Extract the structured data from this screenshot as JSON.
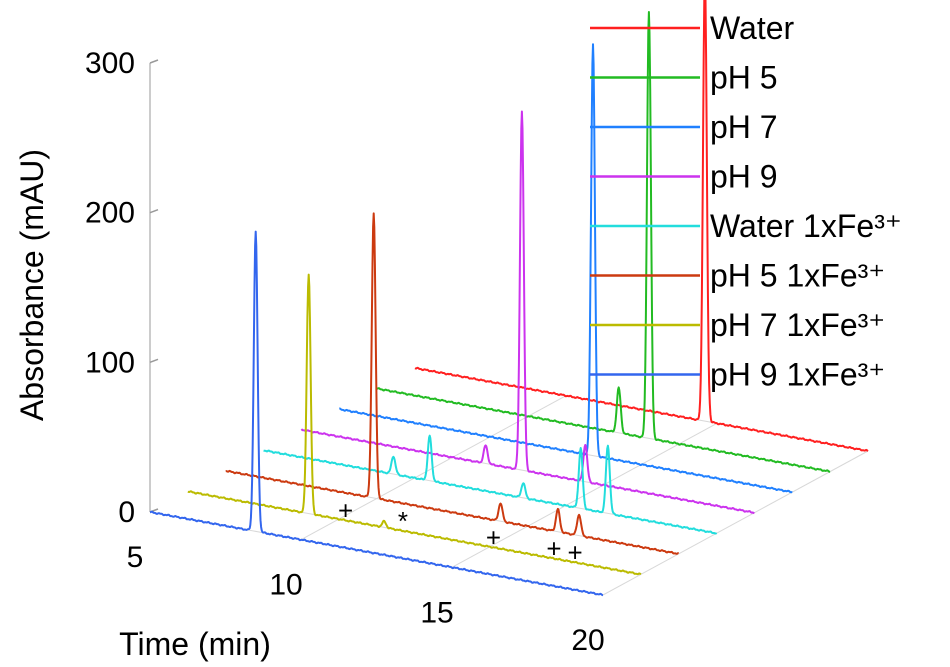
{
  "chart_data": {
    "type": "line",
    "chart_kind": "3d-waterfall",
    "title": "",
    "xlabel": "Time (min)",
    "ylabel": "Absorbance (mAU)",
    "xlim": [
      5,
      20
    ],
    "ylim": [
      0,
      300
    ],
    "x_ticks": [
      "5",
      "10",
      "15",
      "20"
    ],
    "y_ticks": [
      "0",
      "100",
      "200",
      "300"
    ],
    "legend_position": "top-right",
    "series": [
      {
        "name": "Water",
        "color": "#ff2020",
        "peaks": [
          {
            "x": 14.6,
            "y": 297
          }
        ]
      },
      {
        "name": "pH 5",
        "color": "#22bb22",
        "peaks": [
          {
            "x": 14.0,
            "y": 285
          },
          {
            "x": 13.0,
            "y": 30
          }
        ]
      },
      {
        "name": "pH 7",
        "color": "#2080ff",
        "peaks": [
          {
            "x": 13.4,
            "y": 275
          }
        ]
      },
      {
        "name": "pH 9",
        "color": "#cc33ee",
        "peaks": [
          {
            "x": 12.3,
            "y": 240
          },
          {
            "x": 11.1,
            "y": 12
          },
          {
            "x": 14.4,
            "y": 25
          }
        ]
      },
      {
        "name": "Water 1xFe³⁺",
        "color": "#22dddd",
        "peaks": [
          {
            "x": 10.5,
            "y": 30
          },
          {
            "x": 9.3,
            "y": 12
          },
          {
            "x": 13.6,
            "y": 10
          },
          {
            "x": 15.5,
            "y": 40
          },
          {
            "x": 16.4,
            "y": 45
          }
        ]
      },
      {
        "name": "pH 5 1xFe³⁺",
        "color": "#cc3a10",
        "peaks": [
          {
            "x": 9.9,
            "y": 190
          },
          {
            "x": 14.1,
            "y": 12
          },
          {
            "x": 16.0,
            "y": 15
          },
          {
            "x": 16.7,
            "y": 14
          }
        ]
      },
      {
        "name": "pH 7 1xFe³⁺",
        "color": "#bbbb00",
        "peaks": [
          {
            "x": 9.0,
            "y": 160
          },
          {
            "x": 11.5,
            "y": 4
          }
        ]
      },
      {
        "name": "pH 9 1xFe³⁺",
        "color": "#3366ee",
        "peaks": [
          {
            "x": 8.5,
            "y": 200
          }
        ]
      }
    ],
    "annotations": [
      {
        "text": "+",
        "x": 9.1,
        "series": "pH 5 1xFe³⁺"
      },
      {
        "text": "*",
        "x": 11.0,
        "series": "pH 5 1xFe³⁺"
      },
      {
        "text": "+",
        "x": 14.0,
        "series": "pH 5 1xFe³⁺"
      },
      {
        "text": "+",
        "x": 16.0,
        "series": "pH 5 1xFe³⁺"
      },
      {
        "text": "+",
        "x": 16.7,
        "series": "pH 5 1xFe³⁺"
      }
    ]
  }
}
